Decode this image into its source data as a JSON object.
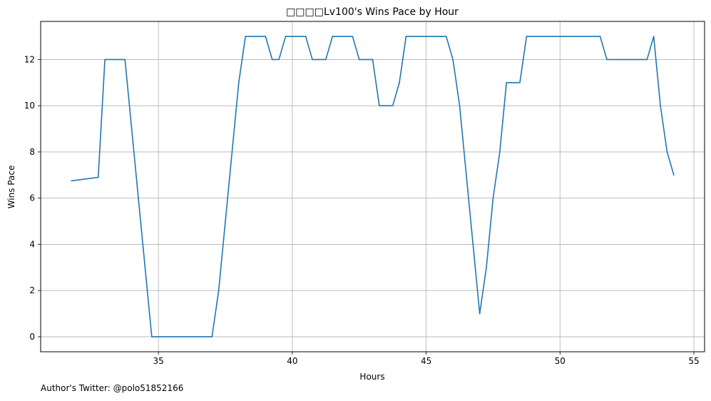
{
  "chart_data": {
    "type": "line",
    "title": "□□□□Lv100's Wins Pace by Hour",
    "xlabel": "Hours",
    "ylabel": "Wins Pace",
    "xlim": [
      30.6,
      55.4
    ],
    "ylim": [
      -0.65,
      13.65
    ],
    "xticks": [
      35,
      40,
      45,
      50,
      55
    ],
    "yticks": [
      0,
      2,
      4,
      6,
      8,
      10,
      12
    ],
    "grid": true,
    "series": [
      {
        "color": "#1f77b4",
        "x": [
          31.75,
          32.75,
          33.0,
          33.75,
          34.0,
          34.25,
          34.5,
          34.75,
          37.0,
          37.25,
          37.5,
          37.75,
          38.0,
          38.25,
          39.0,
          39.25,
          39.5,
          39.75,
          40.5,
          40.75,
          41.25,
          41.5,
          42.25,
          42.5,
          43.0,
          43.25,
          43.75,
          44.0,
          44.25,
          45.75,
          46.0,
          46.25,
          46.5,
          46.75,
          47.0,
          47.25,
          47.5,
          47.75,
          48.0,
          48.5,
          48.75,
          51.5,
          51.75,
          53.25,
          53.5,
          53.75,
          54.0,
          54.25
        ],
        "y": [
          6.75,
          6.9,
          12,
          12,
          9,
          6,
          3,
          0,
          0,
          2,
          5,
          8,
          11,
          13,
          13,
          12,
          12,
          13,
          13,
          12,
          12,
          13,
          13,
          12,
          12,
          10,
          10,
          11,
          13,
          13,
          12,
          10,
          7,
          4,
          1,
          3,
          6,
          8,
          11,
          11,
          13,
          13,
          12,
          12,
          13,
          10,
          8,
          7
        ]
      }
    ]
  },
  "footer_text": "Author's Twitter: @polo51852166"
}
